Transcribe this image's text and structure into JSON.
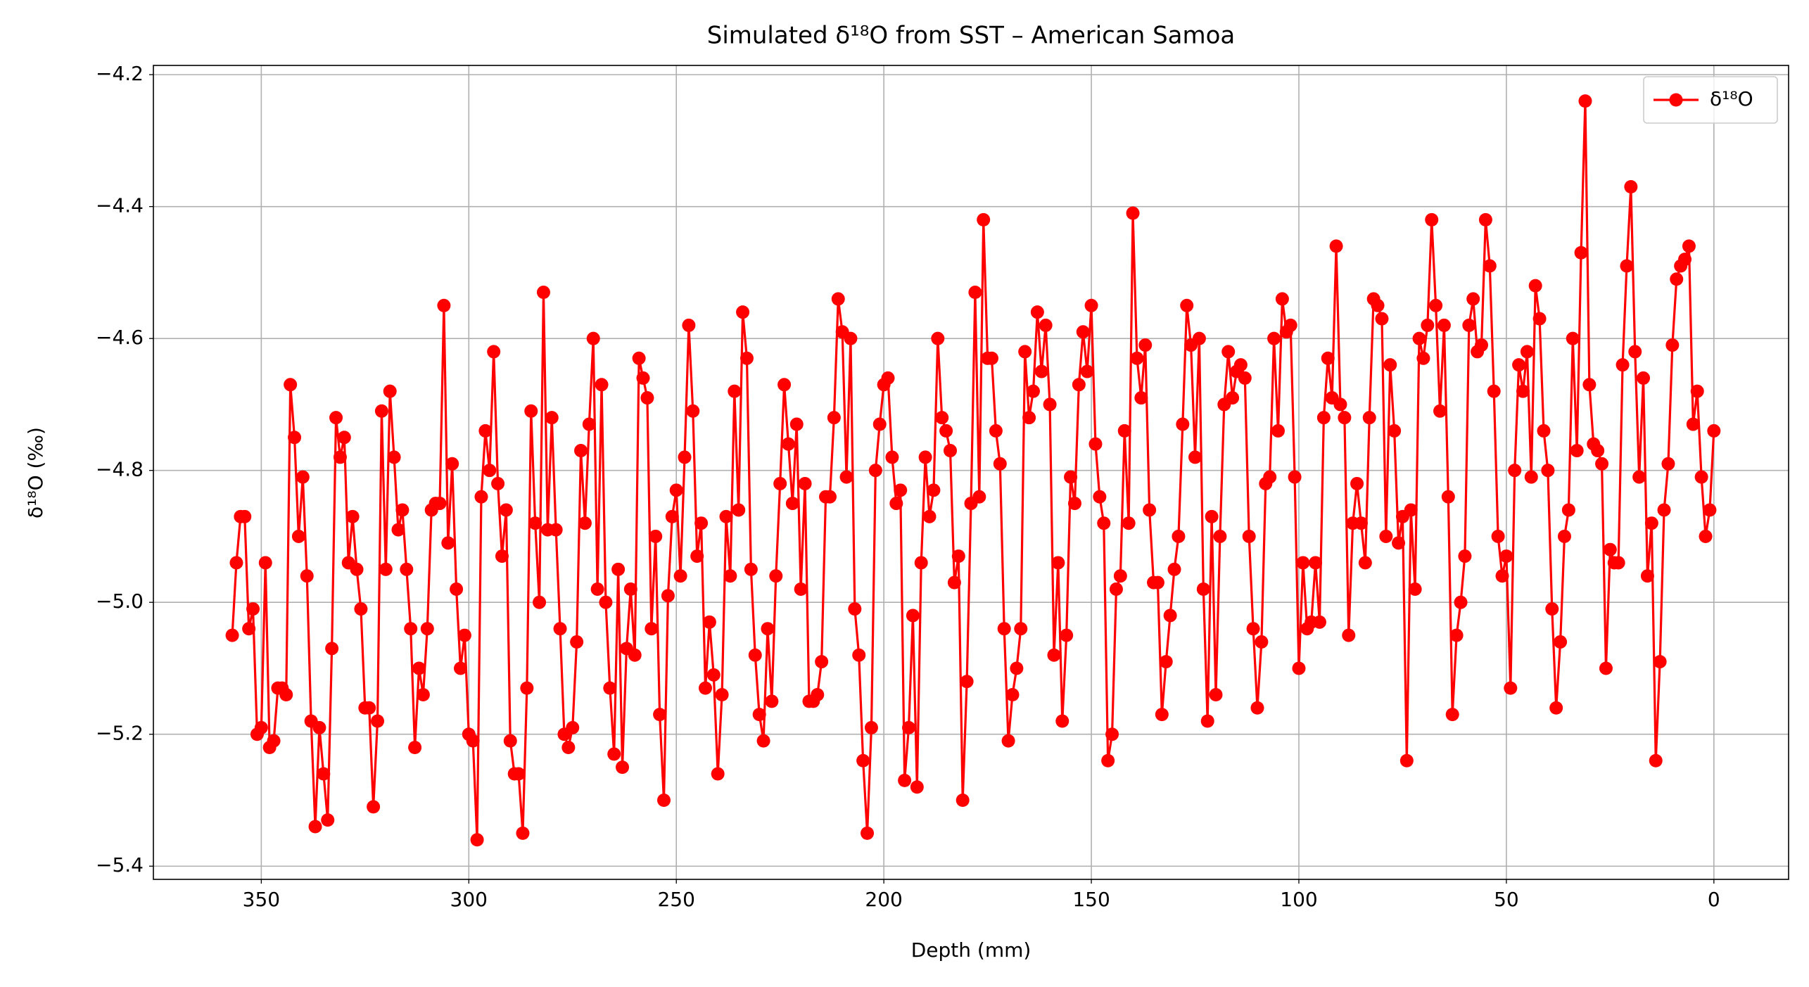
{
  "chart_data": {
    "type": "line",
    "title": "Simulated δ¹⁸O from SST – American Samoa",
    "x_label": "Depth (mm)",
    "y_label": "δ¹⁸O (‰)",
    "xlim": [
      376,
      -18
    ],
    "ylim": [
      -5.42,
      -4.186
    ],
    "xticks": [
      350,
      300,
      250,
      200,
      150,
      100,
      50,
      0
    ],
    "yticks": [
      {
        "value": -5.4,
        "label": "−5.4"
      },
      {
        "value": -5.2,
        "label": "−5.2"
      },
      {
        "value": -5.0,
        "label": "−5.0"
      },
      {
        "value": -4.8,
        "label": "−4.8"
      },
      {
        "value": -4.6,
        "label": "−4.6"
      },
      {
        "value": -4.4,
        "label": "−4.4"
      },
      {
        "value": -4.2,
        "label": "−4.2"
      }
    ],
    "grid": true,
    "legend": "upper-right",
    "x": [
      357,
      356,
      355,
      354,
      353,
      352,
      351,
      350,
      349,
      348,
      347,
      346,
      345,
      344,
      343,
      342,
      341,
      340,
      339,
      338,
      337,
      336,
      335,
      334,
      333,
      332,
      331,
      330,
      329,
      328,
      327,
      326,
      325,
      324,
      323,
      322,
      321,
      320,
      319,
      318,
      317,
      316,
      315,
      314,
      313,
      312,
      311,
      310,
      309,
      308,
      307,
      306,
      305,
      304,
      303,
      302,
      301,
      300,
      299,
      298,
      297,
      296,
      295,
      294,
      293,
      292,
      291,
      290,
      289,
      288,
      287,
      286,
      285,
      284,
      283,
      282,
      281,
      280,
      279,
      278,
      277,
      276,
      275,
      274,
      273,
      272,
      271,
      270,
      269,
      268,
      267,
      266,
      265,
      264,
      263,
      262,
      261,
      260,
      259,
      258,
      257,
      256,
      255,
      254,
      253,
      252,
      251,
      250,
      249,
      248,
      247,
      246,
      245,
      244,
      243,
      242,
      241,
      240,
      239,
      238,
      237,
      236,
      235,
      234,
      233,
      232,
      231,
      230,
      229,
      228,
      227,
      226,
      225,
      224,
      223,
      222,
      221,
      220,
      219,
      218,
      217,
      216,
      215,
      214,
      213,
      212,
      211,
      210,
      209,
      208,
      207,
      206,
      205,
      204,
      203,
      202,
      201,
      200,
      199,
      198,
      197,
      196,
      195,
      194,
      193,
      192,
      191,
      190,
      189,
      188,
      187,
      186,
      185,
      184,
      183,
      182,
      181,
      180,
      179,
      178,
      177,
      176,
      175,
      174,
      173,
      172,
      171,
      170,
      169,
      168,
      167,
      166,
      165,
      164,
      163,
      162,
      161,
      160,
      159,
      158,
      157,
      156,
      155,
      154,
      153,
      152,
      151,
      150,
      149,
      148,
      147,
      146,
      145,
      144,
      143,
      142,
      141,
      140,
      139,
      138,
      137,
      136,
      135,
      134,
      133,
      132,
      131,
      130,
      129,
      128,
      127,
      126,
      125,
      124,
      123,
      122,
      121,
      120,
      119,
      118,
      117,
      116,
      115,
      114,
      113,
      112,
      111,
      110,
      109,
      108,
      107,
      106,
      105,
      104,
      103,
      102,
      101,
      100,
      99,
      98,
      97,
      96,
      95,
      94,
      93,
      92,
      91,
      90,
      89,
      88,
      87,
      86,
      85,
      84,
      83,
      82,
      81,
      80,
      79,
      78,
      77,
      76,
      75,
      74,
      73,
      72,
      71,
      70,
      69,
      68,
      67,
      66,
      65,
      64,
      63,
      62,
      61,
      60,
      59,
      58,
      57,
      56,
      55,
      54,
      53,
      52,
      51,
      50,
      49,
      48,
      47,
      46,
      45,
      44,
      43,
      42,
      41,
      40,
      39,
      38,
      37,
      36,
      35,
      34,
      33,
      32,
      31,
      30,
      29,
      28,
      27,
      26,
      25,
      24,
      23,
      22,
      21,
      20,
      19,
      18,
      17,
      16,
      15,
      14,
      13,
      12,
      11,
      10,
      9,
      8,
      7,
      6,
      5,
      4,
      3,
      2,
      1,
      0
    ],
    "series": [
      {
        "name": "δ¹⁸O",
        "color": "#ff0000",
        "values": [
          -5.05,
          -4.94,
          -4.87,
          -4.87,
          -5.04,
          -5.01,
          -5.2,
          -5.19,
          -4.94,
          -5.22,
          -5.21,
          -5.13,
          -5.13,
          -5.14,
          -4.67,
          -4.75,
          -4.9,
          -4.81,
          -4.96,
          -5.18,
          -5.34,
          -5.19,
          -5.26,
          -5.33,
          -5.07,
          -4.72,
          -4.78,
          -4.75,
          -4.94,
          -4.87,
          -4.95,
          -5.01,
          -5.16,
          -5.16,
          -5.31,
          -5.18,
          -4.71,
          -4.95,
          -4.68,
          -4.78,
          -4.89,
          -4.86,
          -4.95,
          -5.04,
          -5.22,
          -5.1,
          -5.14,
          -5.04,
          -4.86,
          -4.85,
          -4.85,
          -4.55,
          -4.91,
          -4.79,
          -4.98,
          -5.1,
          -5.05,
          -5.2,
          -5.21,
          -5.36,
          -4.84,
          -4.74,
          -4.8,
          -4.62,
          -4.82,
          -4.93,
          -4.86,
          -5.21,
          -5.26,
          -5.26,
          -5.35,
          -5.13,
          -4.71,
          -4.88,
          -5.0,
          -4.53,
          -4.89,
          -4.72,
          -4.89,
          -5.04,
          -5.2,
          -5.22,
          -5.19,
          -5.06,
          -4.77,
          -4.88,
          -4.73,
          -4.6,
          -4.98,
          -4.67,
          -5.0,
          -5.13,
          -5.23,
          -4.95,
          -5.25,
          -5.07,
          -4.98,
          -5.08,
          -4.63,
          -4.66,
          -4.69,
          -5.04,
          -4.9,
          -5.17,
          -5.3,
          -4.99,
          -4.87,
          -4.83,
          -4.96,
          -4.78,
          -4.58,
          -4.71,
          -4.93,
          -4.88,
          -5.13,
          -5.03,
          -5.11,
          -5.26,
          -5.14,
          -4.87,
          -4.96,
          -4.68,
          -4.86,
          -4.56,
          -4.63,
          -4.95,
          -5.08,
          -5.17,
          -5.21,
          -5.04,
          -5.15,
          -4.96,
          -4.82,
          -4.67,
          -4.76,
          -4.85,
          -4.73,
          -4.98,
          -4.82,
          -5.15,
          -5.15,
          -5.14,
          -5.09,
          -4.84,
          -4.84,
          -4.72,
          -4.54,
          -4.59,
          -4.81,
          -4.6,
          -5.01,
          -5.08,
          -5.24,
          -5.35,
          -5.19,
          -4.8,
          -4.73,
          -4.67,
          -4.66,
          -4.78,
          -4.85,
          -4.83,
          -5.27,
          -5.19,
          -5.02,
          -5.28,
          -4.94,
          -4.78,
          -4.87,
          -4.83,
          -4.6,
          -4.72,
          -4.74,
          -4.77,
          -4.97,
          -4.93,
          -5.3,
          -5.12,
          -4.85,
          -4.53,
          -4.84,
          -4.42,
          -4.63,
          -4.63,
          -4.74,
          -4.79,
          -5.04,
          -5.21,
          -5.14,
          -5.1,
          -5.04,
          -4.62,
          -4.72,
          -4.68,
          -4.56,
          -4.65,
          -4.58,
          -4.7,
          -5.08,
          -4.94,
          -5.18,
          -5.05,
          -4.81,
          -4.85,
          -4.67,
          -4.59,
          -4.65,
          -4.55,
          -4.76,
          -4.84,
          -4.88,
          -5.24,
          -5.2,
          -4.98,
          -4.96,
          -4.74,
          -4.88,
          -4.41,
          -4.63,
          -4.69,
          -4.61,
          -4.86,
          -4.97,
          -4.97,
          -5.17,
          -5.09,
          -5.02,
          -4.95,
          -4.9,
          -4.73,
          -4.55,
          -4.61,
          -4.78,
          -4.6,
          -4.98,
          -5.18,
          -4.87,
          -5.14,
          -4.9,
          -4.7,
          -4.62,
          -4.69,
          -4.65,
          -4.64,
          -4.66,
          -4.9,
          -5.04,
          -5.16,
          -5.06,
          -4.82,
          -4.81,
          -4.6,
          -4.74,
          -4.54,
          -4.59,
          -4.58,
          -4.81,
          -5.1,
          -4.94,
          -5.04,
          -5.03,
          -4.94,
          -5.03,
          -4.72,
          -4.63,
          -4.69,
          -4.46,
          -4.7,
          -4.72,
          -5.05,
          -4.88,
          -4.82,
          -4.88,
          -4.94,
          -4.72,
          -4.54,
          -4.55,
          -4.57,
          -4.9,
          -4.64,
          -4.74,
          -4.91,
          -4.87,
          -5.24,
          -4.86,
          -4.98,
          -4.6,
          -4.63,
          -4.58,
          -4.42,
          -4.55,
          -4.71,
          -4.58,
          -4.84,
          -5.17,
          -5.05,
          -5.0,
          -4.93,
          -4.58,
          -4.54,
          -4.62,
          -4.61,
          -4.42,
          -4.49,
          -4.68,
          -4.9,
          -4.96,
          -4.93,
          -5.13,
          -4.8,
          -4.64,
          -4.68,
          -4.62,
          -4.81,
          -4.52,
          -4.57,
          -4.74,
          -4.8,
          -5.01,
          -5.16,
          -5.06,
          -4.9,
          -4.86,
          -4.6,
          -4.77,
          -4.47,
          -4.24,
          -4.67,
          -4.76,
          -4.77,
          -4.79,
          -5.1,
          -4.92,
          -4.94,
          -4.94,
          -4.64,
          -4.49,
          -4.37,
          -4.62,
          -4.81,
          -4.66,
          -4.96,
          -4.88,
          -5.24,
          -5.09,
          -4.86,
          -4.79,
          -4.61,
          -4.51,
          -4.49,
          -4.48,
          -4.46,
          -4.73,
          -4.68,
          -4.81,
          -4.9,
          -4.86,
          -4.74
        ]
      }
    ]
  }
}
